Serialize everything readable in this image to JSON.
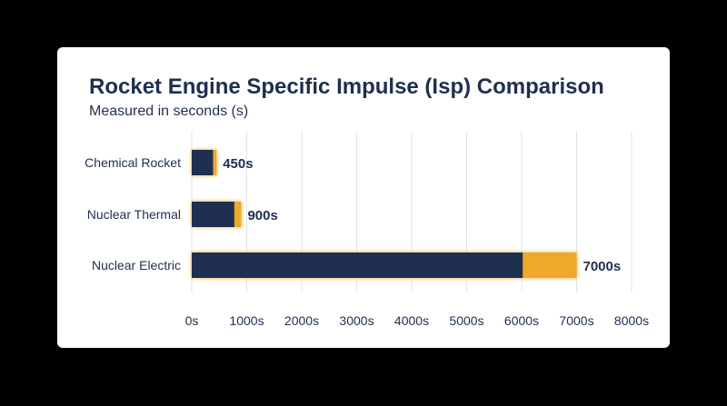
{
  "chart_data": {
    "type": "bar",
    "orientation": "horizontal",
    "title": "Rocket Engine Specific Impulse (Isp) Comparison",
    "subtitle": "Measured in seconds (s)",
    "categories": [
      "Chemical Rocket",
      "Nuclear Thermal",
      "Nuclear Electric"
    ],
    "values": [
      450,
      900,
      7000
    ],
    "value_labels": [
      "450s",
      "900s",
      "7000s"
    ],
    "xlim": [
      0,
      8000
    ],
    "xticks": [
      0,
      1000,
      2000,
      3000,
      4000,
      5000,
      6000,
      7000,
      8000
    ],
    "xtick_labels": [
      "0s",
      "1000s",
      "2000s",
      "3000s",
      "4000s",
      "5000s",
      "6000s",
      "7000s",
      "8000s"
    ],
    "grid": true,
    "colors": {
      "bar_fill": "#1f2f4f",
      "bar_accent": "#f0a82a",
      "grid": "#e3e3e3",
      "text": "#1f2f4f",
      "card": "#ffffff",
      "background": "#000000"
    }
  }
}
